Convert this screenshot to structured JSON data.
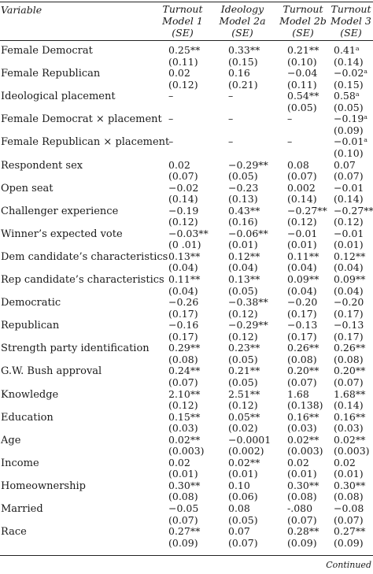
{
  "headers": {
    "variable": "Variable",
    "columns": [
      {
        "line1": "Turnout",
        "line2": "Model 1",
        "line3": "(SE)"
      },
      {
        "line1": "Ideology",
        "line2": "Model 2a",
        "line3": "(SE)"
      },
      {
        "line1": "Turnout",
        "line2": "Model 2b",
        "line3": "(SE)"
      },
      {
        "line1": "Turnout",
        "line2": "Model 3",
        "line3": "(SE)"
      }
    ]
  },
  "rows": [
    {
      "label": "Female Democrat",
      "cells": [
        [
          "0.25**",
          "(0.11)"
        ],
        [
          "0.33**",
          "(0.15)"
        ],
        [
          "0.21**",
          "(0.10)"
        ],
        [
          "0.41ᵃ",
          "(0.14)"
        ]
      ]
    },
    {
      "label": "Female Republican",
      "cells": [
        [
          "0.02",
          "(0.12)"
        ],
        [
          "0.16",
          "(0.21)"
        ],
        [
          "−0.04",
          "(0.11)"
        ],
        [
          "−0.02ᵃ",
          "(0.15)"
        ]
      ]
    },
    {
      "label": "Ideological placement",
      "cells": [
        [
          "–",
          ""
        ],
        [
          "–",
          ""
        ],
        [
          "0.54**",
          "(0.05)"
        ],
        [
          "0.58ᵃ",
          "(0.05)"
        ]
      ]
    },
    {
      "label": "Female Democrat × placement",
      "cells": [
        [
          "–",
          ""
        ],
        [
          "–",
          ""
        ],
        [
          "–",
          ""
        ],
        [
          "−0.19ᵃ",
          "(0.09)"
        ]
      ]
    },
    {
      "label": "Female Republican × placement",
      "cells": [
        [
          "–",
          ""
        ],
        [
          "–",
          ""
        ],
        [
          "–",
          ""
        ],
        [
          "−0.01ᵃ",
          "(0.10)"
        ]
      ]
    },
    {
      "label": "Respondent sex",
      "cells": [
        [
          "0.02",
          "(0.07)"
        ],
        [
          "−0.29**",
          "(0.05)"
        ],
        [
          "0.08",
          "(0.07)"
        ],
        [
          "0.07",
          "(0.07)"
        ]
      ]
    },
    {
      "label": "Open seat",
      "cells": [
        [
          "−0.02",
          "(0.14)"
        ],
        [
          "−0.23",
          "(0.13)"
        ],
        [
          "0.002",
          "(0.14)"
        ],
        [
          "−0.01",
          "(0.14)"
        ]
      ]
    },
    {
      "label": "Challenger experience",
      "cells": [
        [
          "−0.19",
          "(0.12)"
        ],
        [
          "0.43**",
          "(0.16)"
        ],
        [
          "−0.27**",
          "(0.12)"
        ],
        [
          "−0.27**",
          "(0.12)"
        ]
      ]
    },
    {
      "label": "Winner’s expected vote",
      "cells": [
        [
          "−0.03**",
          "(0 .01)"
        ],
        [
          "−0.06**",
          "(0.01)"
        ],
        [
          "−0.01",
          "(0.01)"
        ],
        [
          "−0.01",
          "(0.01)"
        ]
      ]
    },
    {
      "label": "Dem candidate’s characteristics",
      "cells": [
        [
          "0.13**",
          "(0.04)"
        ],
        [
          "0.12**",
          "(0.04)"
        ],
        [
          "0.11**",
          "(0.04)"
        ],
        [
          "0.12**",
          "(0.04)"
        ]
      ]
    },
    {
      "label": "Rep candidate’s characteristics",
      "cells": [
        [
          "0.11**",
          "(0.04)"
        ],
        [
          "0.13**",
          "(0.05)"
        ],
        [
          "0.09**",
          "(0.04)"
        ],
        [
          "0.09**",
          "(0.04)"
        ]
      ]
    },
    {
      "label": "Democratic",
      "cells": [
        [
          "−0.26",
          "(0.17)"
        ],
        [
          "−0.38**",
          "(0.12)"
        ],
        [
          "−0.20",
          "(0.17)"
        ],
        [
          "−0.20",
          "(0.17)"
        ]
      ]
    },
    {
      "label": "Republican",
      "cells": [
        [
          "−0.16",
          "(0.17)"
        ],
        [
          "−0.29**",
          "(0.12)"
        ],
        [
          "−0.13",
          "(0.17)"
        ],
        [
          "−0.13",
          "(0.17)"
        ]
      ]
    },
    {
      "label": "Strength party identification",
      "cells": [
        [
          "0.29**",
          "(0.08)"
        ],
        [
          "0.23**",
          "(0.05)"
        ],
        [
          "0.26**",
          "(0.08)"
        ],
        [
          "0.26**",
          "(0.08)"
        ]
      ]
    },
    {
      "label": "G.W. Bush approval",
      "cells": [
        [
          "0.24**",
          "(0.07)"
        ],
        [
          "0.21**",
          "(0.05)"
        ],
        [
          "0.20**",
          "(0.07)"
        ],
        [
          "0.20**",
          "(0.07)"
        ]
      ]
    },
    {
      "label": "Knowledge",
      "cells": [
        [
          "2.10**",
          "(0.12)"
        ],
        [
          "2.51**",
          "(0.12)"
        ],
        [
          "1.68",
          "(0.138)"
        ],
        [
          "1.68**",
          "(0.14)"
        ]
      ]
    },
    {
      "label": "Education",
      "cells": [
        [
          "0.15**",
          "(0.03)"
        ],
        [
          "0.05**",
          "(0.02)"
        ],
        [
          "0.16**",
          "(0.03)"
        ],
        [
          "0.16**",
          "(0.03)"
        ]
      ]
    },
    {
      "label": "Age",
      "cells": [
        [
          "0.02**",
          "(0.003)"
        ],
        [
          "−0.0001",
          "(0.002)"
        ],
        [
          "0.02**",
          "(0.003)"
        ],
        [
          "0.02**",
          "(0.003)"
        ]
      ]
    },
    {
      "label": "Income",
      "cells": [
        [
          "0.02",
          "(0.01)"
        ],
        [
          "0.02**",
          "(0.01)"
        ],
        [
          "0.02",
          "(0.01)"
        ],
        [
          "0.02",
          "(0.01)"
        ]
      ]
    },
    {
      "label": "Homeownership",
      "cells": [
        [
          "0.30**",
          "(0.08)"
        ],
        [
          "0.10",
          "(0.06)"
        ],
        [
          "0.30**",
          "(0.08)"
        ],
        [
          "0.30**",
          "(0.08)"
        ]
      ]
    },
    {
      "label": "Married",
      "cells": [
        [
          "−0.05",
          "(0.07)"
        ],
        [
          "0.08",
          "(0.05)"
        ],
        [
          "-.080",
          "(0.07)"
        ],
        [
          "−0.08",
          "(0.07)"
        ]
      ]
    },
    {
      "label": "Race",
      "cells": [
        [
          "0.27**",
          "(0.09)"
        ],
        [
          "0.07",
          "(0.07)"
        ],
        [
          "0.28**",
          "(0.09)"
        ],
        [
          "0.27**",
          "(0.09)"
        ]
      ]
    }
  ],
  "footer": "Continued"
}
